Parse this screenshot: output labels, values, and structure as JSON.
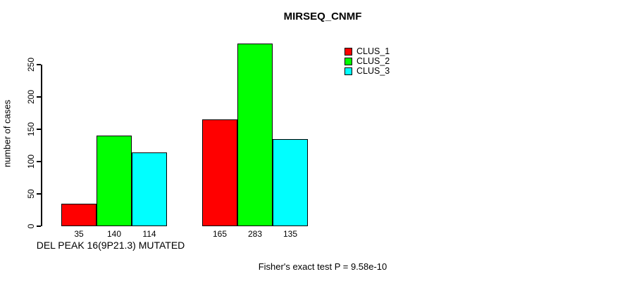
{
  "chart_data": {
    "type": "bar",
    "title": "MIRSEQ_CNMF",
    "ylabel": "number of cases",
    "xlabel": "",
    "group_labels": [
      "DEL PEAK 16(9P21.3) MUTATED",
      ""
    ],
    "series": [
      {
        "name": "CLUS_1",
        "color": "#ff0000",
        "values": [
          35,
          165
        ]
      },
      {
        "name": "CLUS_2",
        "color": "#00ff00",
        "values": [
          140,
          283
        ]
      },
      {
        "name": "CLUS_3",
        "color": "#00ffff",
        "values": [
          114,
          135
        ]
      }
    ],
    "bar_value_labels": [
      [
        35,
        140,
        114
      ],
      [
        165,
        283,
        135
      ]
    ],
    "yticks": [
      0,
      50,
      100,
      150,
      200,
      250
    ],
    "ylim": [
      0,
      250
    ],
    "grid": false,
    "legend_position": "top-right",
    "legend_border": "none",
    "annotation": "Fisher's exact test P = 9.58e-10"
  }
}
